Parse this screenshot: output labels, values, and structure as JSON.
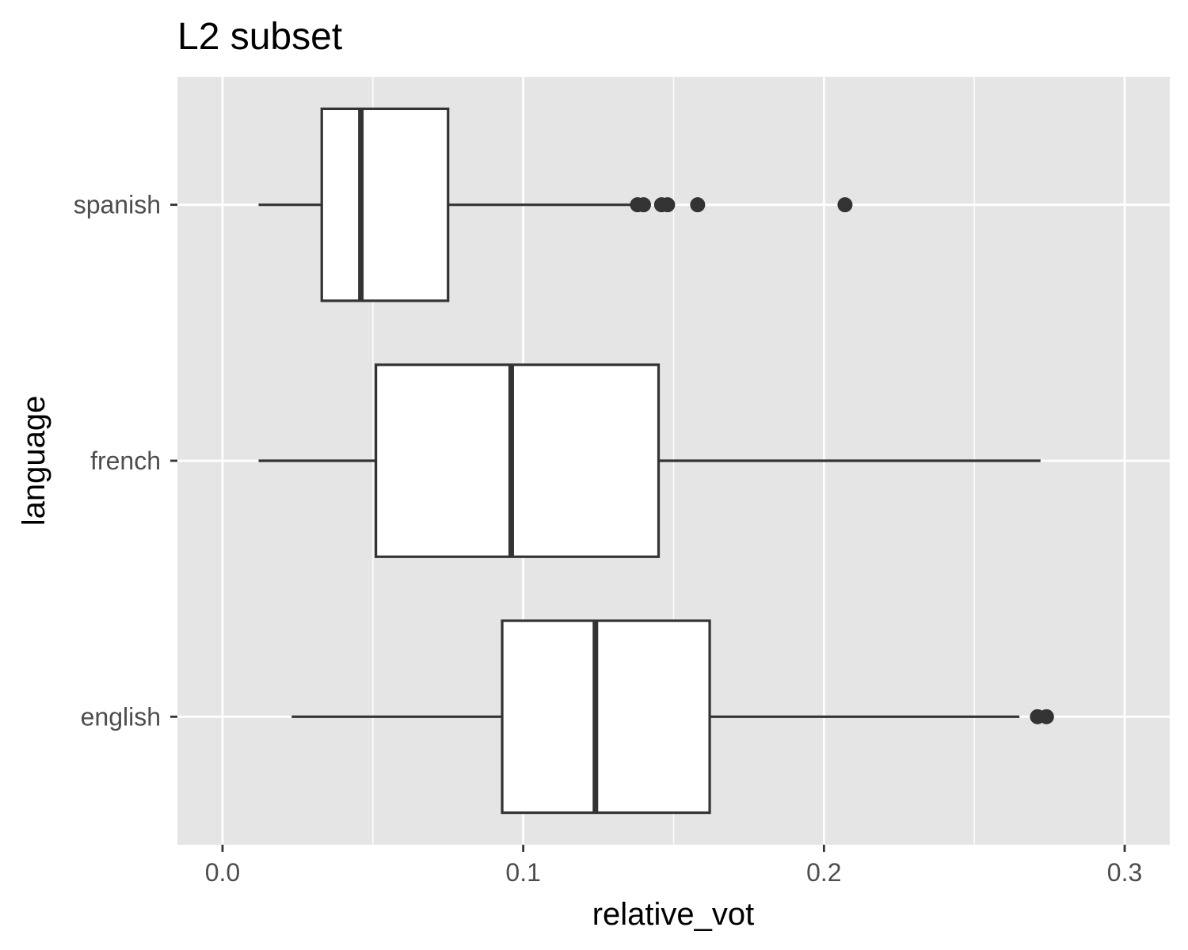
{
  "chart_data": {
    "type": "boxplot",
    "orientation": "horizontal",
    "title": "L2 subset",
    "xlabel": "relative_vot",
    "ylabel": "language",
    "xlim": [
      -0.015,
      0.315
    ],
    "x_ticks": [
      0.0,
      0.1,
      0.2,
      0.3
    ],
    "x_tick_labels": [
      "0.0",
      "0.1",
      "0.2",
      "0.3"
    ],
    "x_minor_ticks": [
      0.05,
      0.15,
      0.25
    ],
    "categories": [
      "spanish",
      "french",
      "english"
    ],
    "boxes": [
      {
        "category": "spanish",
        "whisker_low": 0.012,
        "q1": 0.033,
        "median": 0.046,
        "q3": 0.075,
        "whisker_high": 0.138,
        "outliers": [
          0.138,
          0.14,
          0.146,
          0.148,
          0.158,
          0.207
        ]
      },
      {
        "category": "french",
        "whisker_low": 0.012,
        "q1": 0.051,
        "median": 0.096,
        "q3": 0.145,
        "whisker_high": 0.272,
        "outliers": []
      },
      {
        "category": "english",
        "whisker_low": 0.023,
        "q1": 0.093,
        "median": 0.124,
        "q3": 0.162,
        "whisker_high": 0.265,
        "outliers": [
          0.271,
          0.274
        ]
      }
    ],
    "grid": true,
    "legend": "none",
    "colors": {
      "panel_background": "#e5e5e5",
      "grid": "#ffffff",
      "box_fill": "#ffffff",
      "box_outline": "#333333",
      "outlier": "#333333",
      "tick_text": "#4d4d4d",
      "title_text": "#000000"
    }
  }
}
